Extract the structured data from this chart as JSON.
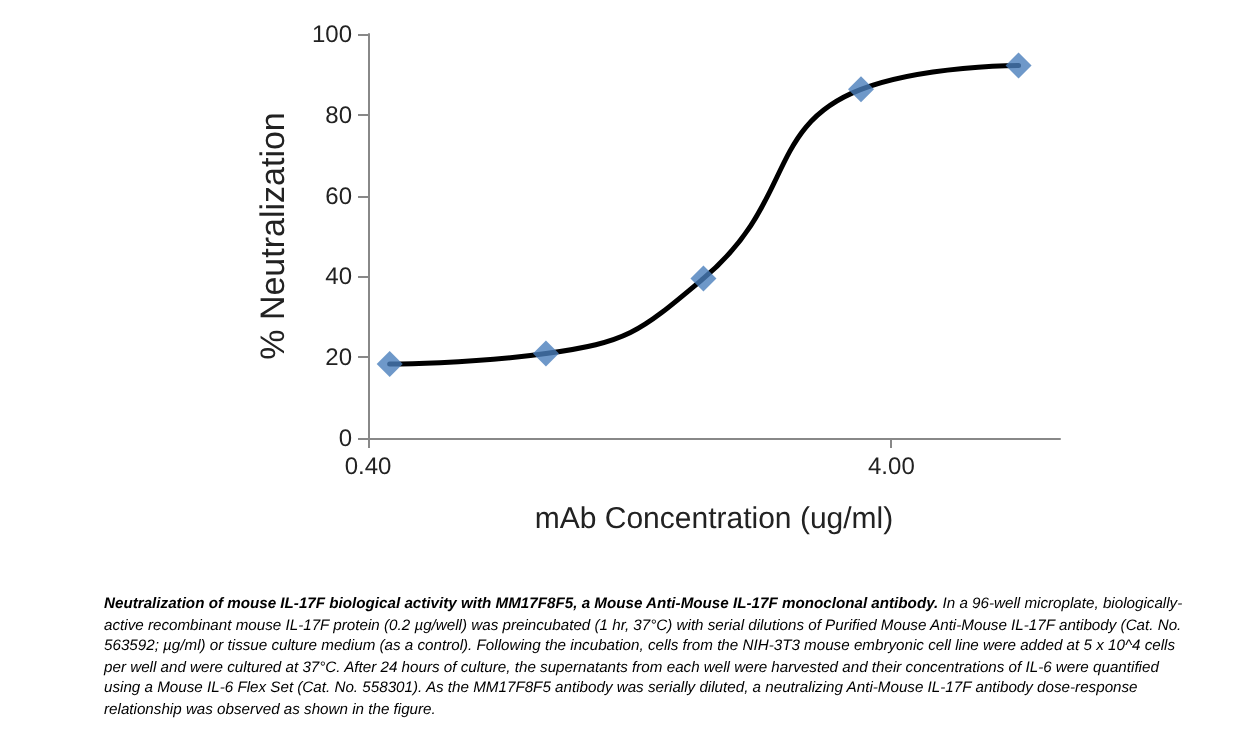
{
  "chart_data": {
    "type": "scatter",
    "xlabel": "mAb Concentration (ug/ml)",
    "ylabel": "% Neutralization",
    "annotations": [
      "Neutralization of mouse IL-17F biological activity with MM17F8F5, a Mouse Anti-Mouse IL-17F monoclonal antibody.",
      "In a 96-well microplate, biologically-active recombinant mouse IL-17F protein (0.2 µg/well) was preincubated (1 hr, 37°C) with serial dilutions of Purified Mouse Anti-Mouse IL-17F antibody (Cat. No. 563592; µg/ml) or tissue culture medium (as a control). Following the incubation, cells from the NIH-3T3 mouse embryonic cell line were added at 5 x 10^4 cells per well and were cultured at 37°C. After 24 hours of culture, the supernatants from each well were harvested and their concentrations of IL-6 were quantified using a Mouse IL-6 Flex Set (Cat. No. 558301). As the MM17F8F5 antibody was serially diluted, a neutralizing Anti-Mouse IL-17F antibody dose-response relationship was observed as shown in the figure."
    ],
    "x": [
      0.44,
      0.875,
      1.75,
      3.5,
      7.0
    ],
    "series": [
      {
        "type": "line",
        "color": "#000000",
        "marker": "none",
        "values": [
          18.3,
          20.9,
          39.5,
          86.3,
          92.2
        ]
      },
      {
        "color": "#4a7ebb",
        "marker": "diamond",
        "values": [
          18.3,
          20.9,
          39.5,
          86.3,
          92.2
        ]
      }
    ],
    "log": "x",
    "xlim": [
      0.4,
      8.4
    ],
    "xticks": [
      {
        "value": 0.4,
        "label": "0.40"
      },
      {
        "value": 4,
        "label": "4.00"
      }
    ],
    "ylim": [
      0,
      100
    ],
    "yticks": [
      0,
      20,
      40,
      60,
      80,
      100
    ],
    "grid": false
  }
}
